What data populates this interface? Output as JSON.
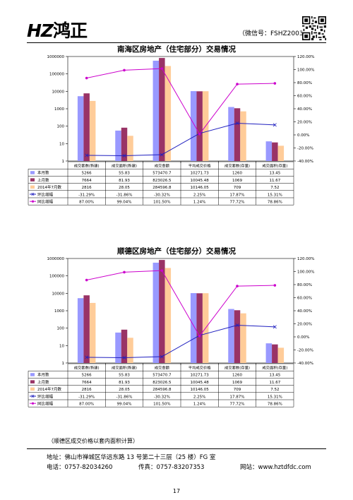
{
  "header": {
    "logo_text_a": "HZ",
    "logo_text_b": "鸿正",
    "wechat": "（微信号：FSHZ2003）"
  },
  "colors": {
    "bar_this_month": "#9999ff",
    "bar_last_month": "#993366",
    "bar_last_year": "#ffcc99",
    "line_mom": "#1f1fbf",
    "line_yoy": "#cc00cc"
  },
  "charts": [
    {
      "chart_data": {
        "type": "bar",
        "title": "南海区房地产（住宅部分）交易情况",
        "y_scale": "log",
        "ylim": [
          1,
          1000000
        ],
        "y_ticks": [
          "1",
          "10",
          "100",
          "1000",
          "10000",
          "100000",
          "1000000"
        ],
        "y2lim": [
          -40,
          120
        ],
        "y2_ticks": [
          "-40.00%",
          "-20.00%",
          "0.00%",
          "20.00%",
          "40.00%",
          "60.00%",
          "80.00%",
          "100.00%",
          "120.00%"
        ],
        "categories": [
          "成交套数(新建)",
          "成交面积(新建)",
          "成交金额",
          "平均成交价格",
          "成交套数(存量)",
          "成交面积(存量)"
        ],
        "series": [
          {
            "name": "本月数",
            "kind": "bar",
            "values": [
              5266,
              55.83,
              573470.7,
              10271.73,
              1260,
              13.45
            ],
            "labels": [
              "5266",
              "55.83",
              "573470.7",
              "10271.73",
              "1260",
              "13.45"
            ]
          },
          {
            "name": "上月数",
            "kind": "bar",
            "values": [
              7664,
              81.93,
              823026.5,
              10045.48,
              1069,
              11.67
            ],
            "labels": [
              "7664",
              "81.93",
              "823026.5",
              "10045.48",
              "1069",
              "11.67"
            ]
          },
          {
            "name": "2014年7月数",
            "kind": "bar",
            "values": [
              2816,
              28.05,
              284596.8,
              10146.05,
              709,
              7.52
            ],
            "labels": [
              "2816",
              "28.05",
              "284596.8",
              "10146.05",
              "709",
              "7.52"
            ]
          },
          {
            "name": "环比增幅",
            "kind": "line",
            "values": [
              -31.29,
              -31.86,
              -30.32,
              2.25,
              17.87,
              15.31
            ],
            "labels": [
              "-31.29%",
              "-31.86%",
              "-30.32%",
              "2.25%",
              "17.87%",
              "15.31%"
            ]
          },
          {
            "name": "同比增幅",
            "kind": "line",
            "values": [
              87.0,
              99.04,
              101.5,
              1.24,
              77.72,
              78.86
            ],
            "labels": [
              "87.00%",
              "99.04%",
              "101.50%",
              "1.24%",
              "77.72%",
              "78.86%"
            ]
          }
        ]
      }
    },
    {
      "chart_data": {
        "type": "bar",
        "title": "顺德区房地产（住宅部分）交易情况",
        "y_scale": "log",
        "ylim": [
          1,
          1000000
        ],
        "y_ticks": [
          "1",
          "10",
          "100",
          "1000",
          "10000",
          "100000",
          "1000000"
        ],
        "y2lim": [
          -40,
          120
        ],
        "y2_ticks": [
          "-40.00%",
          "-20.00%",
          "0.00%",
          "20.00%",
          "40.00%",
          "60.00%",
          "80.00%",
          "100.00%",
          "120.00%"
        ],
        "categories": [
          "成交套数(新建)",
          "成交面积(新建)",
          "成交金额",
          "平均成交价格",
          "成交套数(存量)",
          "成交面积(存量)"
        ],
        "series": [
          {
            "name": "本月数",
            "kind": "bar",
            "values": [
              5266,
              55.83,
              573470.7,
              10271.73,
              1260,
              13.45
            ],
            "labels": [
              "5266",
              "55.83",
              "573470.7",
              "10271.73",
              "1260",
              "13.45"
            ]
          },
          {
            "name": "上月数",
            "kind": "bar",
            "values": [
              7664,
              81.93,
              823026.5,
              10045.48,
              1069,
              11.67
            ],
            "labels": [
              "7664",
              "81.93",
              "823026.5",
              "10045.48",
              "1069",
              "11.67"
            ]
          },
          {
            "name": "2014年7月数",
            "kind": "bar",
            "values": [
              2816,
              28.05,
              284596.8,
              10146.05,
              709,
              7.52
            ],
            "labels": [
              "2816",
              "28.05",
              "284596.8",
              "10146.05",
              "709",
              "7.52"
            ]
          },
          {
            "name": "环比增幅",
            "kind": "line",
            "values": [
              -31.29,
              -31.86,
              -30.32,
              2.25,
              17.87,
              15.31
            ],
            "labels": [
              "-31.29%",
              "-31.86%",
              "-30.32%",
              "2.25%",
              "17.87%",
              "15.31%"
            ]
          },
          {
            "name": "同比增幅",
            "kind": "line",
            "values": [
              87.0,
              99.04,
              101.5,
              1.24,
              77.72,
              78.86
            ],
            "labels": [
              "87.00%",
              "99.04%",
              "101.50%",
              "1.24%",
              "77.72%",
              "78.86%"
            ]
          }
        ]
      }
    }
  ],
  "note": "（顺德区成交价格以套内面积计算）",
  "footer": {
    "address": "地址：佛山市禅城区华远东路 13 号第二十三层（25 楼）FG 室",
    "phone": "电话：0757-82034260",
    "fax": "传真：0757-83207353",
    "website": "网站：www.hztdfdc.com",
    "page_number": "17"
  }
}
